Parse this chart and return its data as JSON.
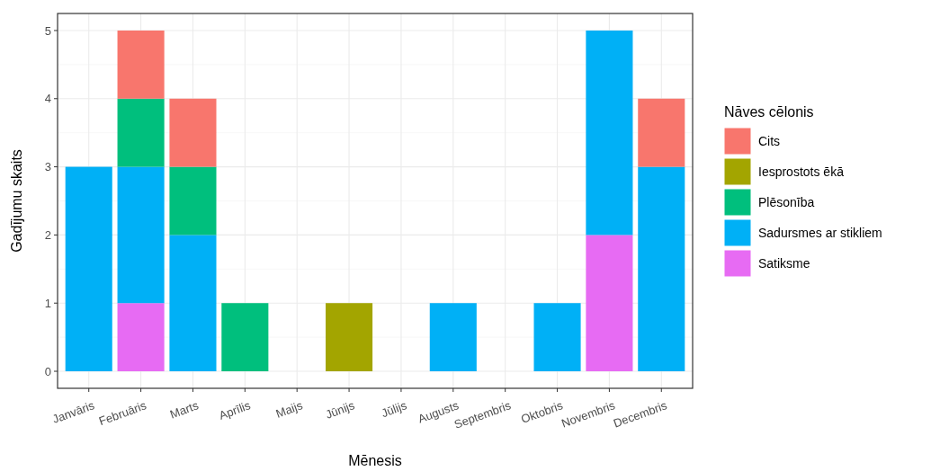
{
  "chart_data": {
    "type": "bar",
    "stacked": true,
    "xlabel": "Mēnesis",
    "ylabel": "Gadījumu skaits",
    "legend_title": "Nāves cēlonis",
    "legend": "right",
    "grid": true,
    "categories": [
      "Janvāris",
      "Februāris",
      "Marts",
      "Aprīlis",
      "Maijs",
      "Jūnijs",
      "Jūlijs",
      "Augusts",
      "Septembris",
      "Oktobris",
      "Novembris",
      "Decembris"
    ],
    "ylim": [
      -0.25,
      5.25
    ],
    "yticks": [
      0,
      1,
      2,
      3,
      4,
      5
    ],
    "series": [
      {
        "name": "Satiksme",
        "color": "#e76bf3",
        "values": [
          0,
          1,
          0,
          0,
          0,
          0,
          0,
          0,
          0,
          0,
          2,
          0
        ]
      },
      {
        "name": "Sadursmes ar stikliem",
        "color": "#00b0f6",
        "values": [
          3,
          2,
          2,
          0,
          0,
          0,
          0,
          1,
          0,
          1,
          3,
          3
        ]
      },
      {
        "name": "Plēsonība",
        "color": "#00bf7d",
        "values": [
          0,
          1,
          1,
          1,
          0,
          0,
          0,
          0,
          0,
          0,
          0,
          0
        ]
      },
      {
        "name": "Iesprostots ēkā",
        "color": "#a3a500",
        "values": [
          0,
          0,
          0,
          0,
          0,
          1,
          0,
          0,
          0,
          0,
          0,
          0
        ]
      },
      {
        "name": "Cits",
        "color": "#f8766d",
        "values": [
          0,
          1,
          1,
          0,
          0,
          0,
          0,
          0,
          0,
          0,
          0,
          1
        ]
      }
    ]
  }
}
